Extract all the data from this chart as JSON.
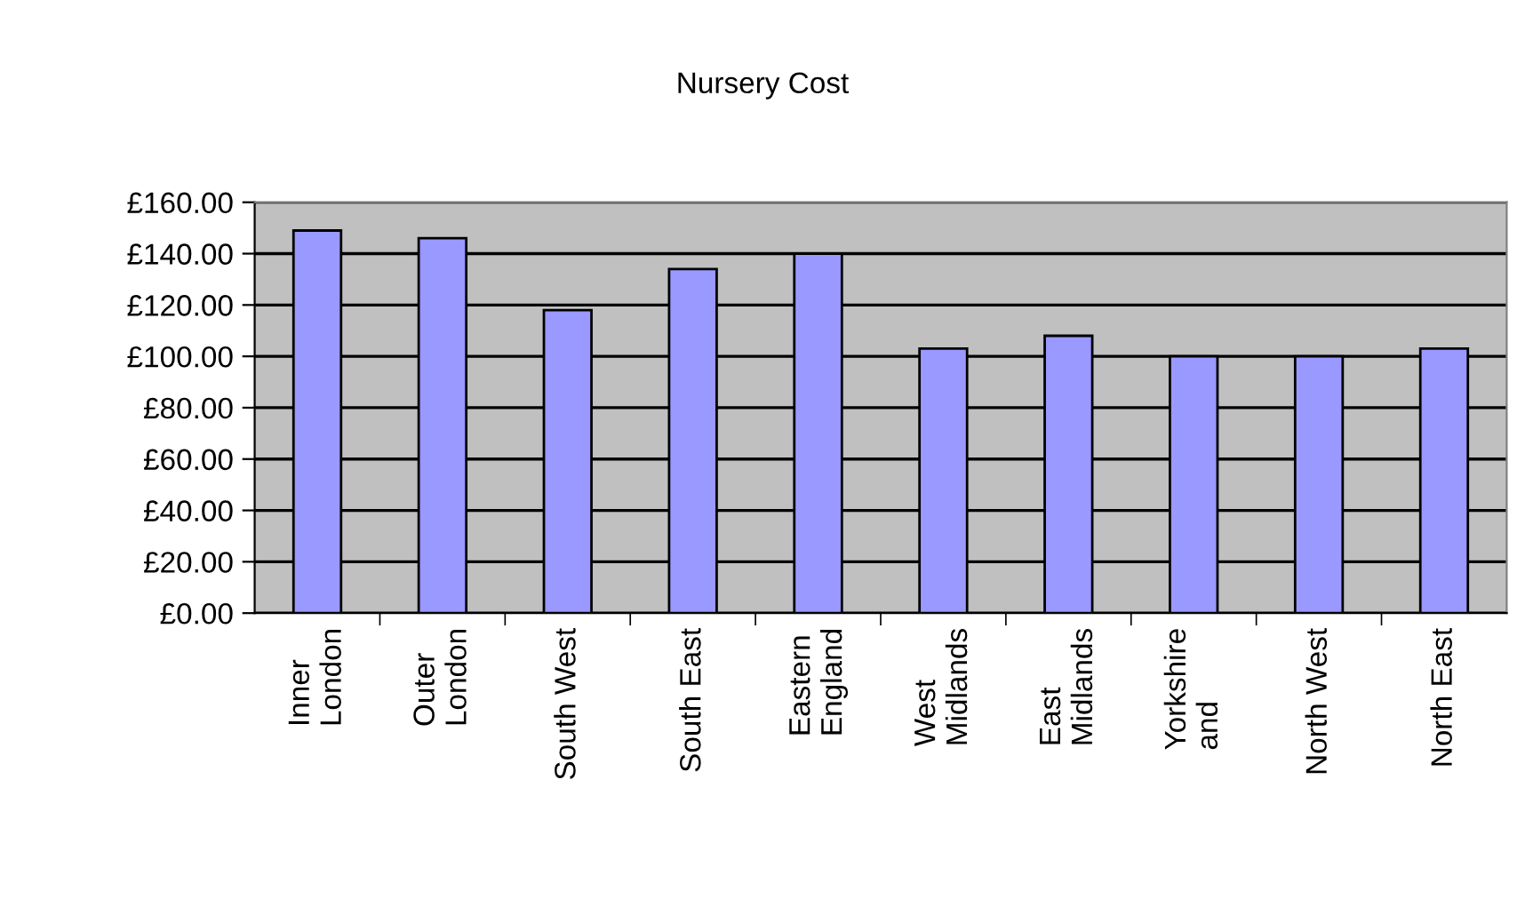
{
  "chart_data": {
    "type": "bar",
    "title": "Nursery Cost",
    "categories": [
      "Inner London",
      "Outer London",
      "South West",
      "South East",
      "Eastern England",
      "West Midlands",
      "East Midlands",
      "Yorkshire and",
      "North West",
      "North East"
    ],
    "values": [
      149,
      146,
      118,
      134,
      140,
      103,
      108,
      100,
      100,
      103
    ],
    "color": "#9999ff",
    "ylim": [
      0,
      160
    ],
    "yticks": [
      {
        "value": 0,
        "label": "£0.00"
      },
      {
        "value": 20,
        "label": "£20.00"
      },
      {
        "value": 40,
        "label": "£40.00"
      },
      {
        "value": 60,
        "label": "£60.00"
      },
      {
        "value": 80,
        "label": "£80.00"
      },
      {
        "value": 100,
        "label": "£100.00"
      },
      {
        "value": 120,
        "label": "£120.00"
      },
      {
        "value": 140,
        "label": "£140.00"
      },
      {
        "value": 160,
        "label": "£160.00"
      }
    ],
    "grid": "y"
  }
}
